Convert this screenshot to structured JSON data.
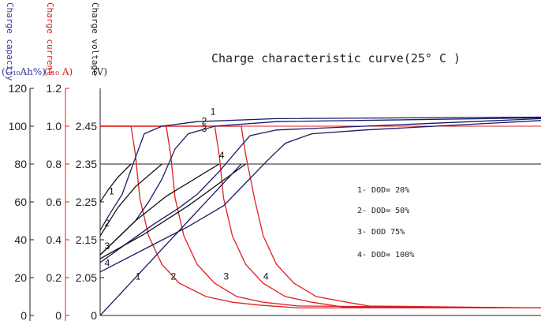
{
  "chart_data": {
    "type": "line",
    "title": "Charge characteristic curve(25° C )",
    "x_range": [
      0,
      100
    ],
    "axes": {
      "capacity": {
        "label": "Charge capacity",
        "unit": "(C₁₀Ah%)",
        "ticks": [
          "0",
          "20",
          "40",
          "60",
          "80",
          "100",
          "120"
        ],
        "range": [
          0,
          120
        ],
        "color": "#3a3a9a"
      },
      "current": {
        "label": "Charge current",
        "unit": "(I₁₀ A)",
        "ticks": [
          "0",
          "0.2",
          "0.4",
          "0.6",
          "0.8",
          "1.0",
          "1.2"
        ],
        "range": [
          0,
          1.2
        ],
        "color": "#e02020"
      },
      "voltage": {
        "label": "Charge voltage",
        "unit": "(V)",
        "ticks": [
          "2.05",
          "2.15",
          "2.25",
          "2.35",
          "2.45"
        ],
        "tick_values": [
          2.05,
          2.15,
          2.25,
          2.35,
          2.45
        ],
        "range": [
          1.95,
          2.55
        ],
        "color": "#111111"
      }
    },
    "legend": [
      "1- DOD= 20%",
      "2- DOD= 50%",
      "3- DOD 75%",
      "4- DOD= 100%"
    ],
    "current_series": [
      {
        "name": "1",
        "color": "#e02020",
        "points": [
          [
            0,
            1.0
          ],
          [
            7,
            1.0
          ],
          [
            8,
            0.85
          ],
          [
            9,
            0.62
          ],
          [
            11,
            0.42
          ],
          [
            14,
            0.27
          ],
          [
            18,
            0.17
          ],
          [
            24,
            0.1
          ],
          [
            30,
            0.07
          ],
          [
            36,
            0.055
          ],
          [
            45,
            0.04
          ],
          [
            100,
            0.04
          ]
        ]
      },
      {
        "name": "2",
        "color": "#e02020",
        "points": [
          [
            0,
            1.0
          ],
          [
            15,
            1.0
          ],
          [
            16,
            0.85
          ],
          [
            17,
            0.62
          ],
          [
            19,
            0.42
          ],
          [
            22,
            0.27
          ],
          [
            26,
            0.17
          ],
          [
            31,
            0.1
          ],
          [
            37,
            0.07
          ],
          [
            45,
            0.05
          ],
          [
            100,
            0.04
          ]
        ]
      },
      {
        "name": "3",
        "color": "#e02020",
        "points": [
          [
            0,
            1.0
          ],
          [
            26,
            1.0
          ],
          [
            27,
            0.85
          ],
          [
            28,
            0.62
          ],
          [
            30,
            0.42
          ],
          [
            33,
            0.27
          ],
          [
            37,
            0.17
          ],
          [
            42,
            0.1
          ],
          [
            48,
            0.07
          ],
          [
            55,
            0.045
          ],
          [
            100,
            0.04
          ]
        ]
      },
      {
        "name": "4",
        "color": "#e02020",
        "points": [
          [
            0,
            1.0
          ],
          [
            32,
            1.0
          ],
          [
            33,
            0.85
          ],
          [
            35,
            0.62
          ],
          [
            37,
            0.42
          ],
          [
            40,
            0.27
          ],
          [
            44,
            0.17
          ],
          [
            49,
            0.1
          ],
          [
            56,
            0.07
          ],
          [
            61,
            0.05
          ],
          [
            100,
            0.04
          ]
        ]
      }
    ],
    "voltage_series": [
      {
        "name": "1",
        "color": "#1a1a6a",
        "points": [
          [
            0,
            2.175
          ],
          [
            2,
            2.215
          ],
          [
            5,
            2.27
          ],
          [
            7,
            2.335
          ],
          [
            10,
            2.43
          ],
          [
            14,
            2.45
          ],
          [
            22,
            2.462
          ],
          [
            40,
            2.47
          ],
          [
            100,
            2.474
          ]
        ]
      },
      {
        "name": "2",
        "color": "#1a1a6a",
        "points": [
          [
            0,
            2.11
          ],
          [
            4,
            2.155
          ],
          [
            8,
            2.2
          ],
          [
            11,
            2.25
          ],
          [
            14,
            2.31
          ],
          [
            17,
            2.39
          ],
          [
            20,
            2.43
          ],
          [
            26,
            2.45
          ],
          [
            40,
            2.462
          ],
          [
            100,
            2.472
          ]
        ]
      },
      {
        "name": "3",
        "color": "#1a1a6a",
        "points": [
          [
            0,
            2.09
          ],
          [
            6,
            2.14
          ],
          [
            12,
            2.19
          ],
          [
            18,
            2.235
          ],
          [
            22,
            2.27
          ],
          [
            27,
            2.33
          ],
          [
            31,
            2.385
          ],
          [
            34,
            2.425
          ],
          [
            40,
            2.44
          ],
          [
            100,
            2.47
          ]
        ]
      },
      {
        "name": "4",
        "color": "#1a1a6a",
        "points": [
          [
            0,
            2.065
          ],
          [
            10,
            2.125
          ],
          [
            20,
            2.185
          ],
          [
            28,
            2.24
          ],
          [
            33,
            2.3
          ],
          [
            38,
            2.36
          ],
          [
            42,
            2.405
          ],
          [
            48,
            2.43
          ],
          [
            60,
            2.44
          ],
          [
            100,
            2.465
          ]
        ]
      }
    ],
    "capacity_series": [
      {
        "name": "1",
        "color": "#1a1a6a",
        "points": [
          [
            0,
            60
          ],
          [
            2,
            67
          ],
          [
            4,
            73
          ],
          [
            7,
            80
          ]
        ]
      },
      {
        "name": "2",
        "color": "#1a1a6a",
        "points": [
          [
            0,
            42
          ],
          [
            4,
            57
          ],
          [
            8,
            68
          ],
          [
            14,
            80
          ]
        ]
      },
      {
        "name": "3",
        "color": "#1a1a6a",
        "points": [
          [
            0,
            32
          ],
          [
            8,
            50
          ],
          [
            15,
            63
          ],
          [
            27,
            80
          ]
        ]
      },
      {
        "name": "4",
        "color": "#1a1a6a",
        "points": [
          [
            0,
            30
          ],
          [
            10,
            43
          ],
          [
            20,
            58
          ],
          [
            33,
            80
          ]
        ]
      },
      {
        "name": "capacity-line",
        "color": "#1a1a6a",
        "points": [
          [
            0,
            0
          ],
          [
            32,
            80
          ]
        ]
      }
    ],
    "curve_labels": [
      {
        "text": "1",
        "x": 8,
        "curve": "current-1",
        "y_current": 0.19
      },
      {
        "text": "2",
        "x": 16,
        "curve": "current-2",
        "y_current": 0.19
      },
      {
        "text": "3",
        "x": 28,
        "curve": "current-3",
        "y_current": 0.19
      },
      {
        "text": "4",
        "x": 37,
        "curve": "current-4",
        "y_current": 0.19
      },
      {
        "text": "1",
        "x": 2,
        "curve": "capacity-1",
        "y_capacity": 64
      },
      {
        "text": "2",
        "x": 1,
        "curve": "capacity-2",
        "y_capacity": 47
      },
      {
        "text": "3",
        "x": 1,
        "curve": "capacity-3",
        "y_capacity": 35
      },
      {
        "text": "4",
        "x": 1,
        "curve": "capacity-4",
        "y_capacity": 26
      },
      {
        "text": "1",
        "x": 25,
        "curve": "voltage-1",
        "y_voltage": 2.48
      },
      {
        "text": "2",
        "x": 23,
        "curve": "voltage-2",
        "y_voltage": 2.455
      },
      {
        "text": "3",
        "x": 23,
        "curve": "voltage-3",
        "y_voltage": 2.435
      },
      {
        "text": "4",
        "x": 27,
        "curve": "voltage-4",
        "y_voltage": 2.365
      }
    ],
    "reference_lines": {
      "capacity_100": 100,
      "capacity_80": 80
    },
    "grid": false,
    "legend_position": "right"
  }
}
